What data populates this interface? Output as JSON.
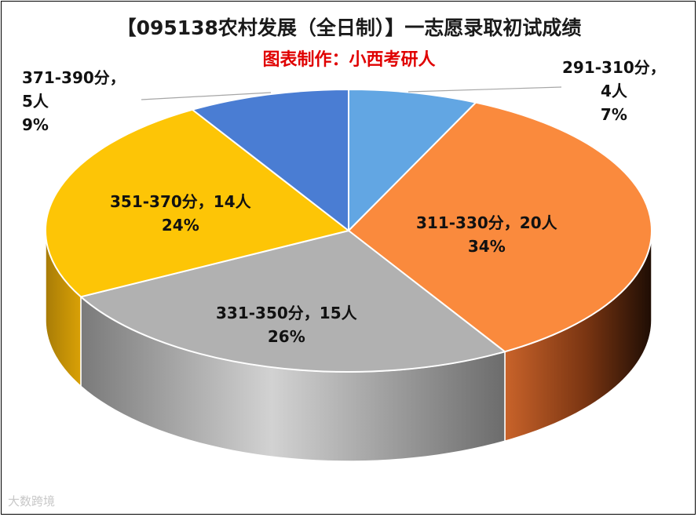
{
  "title": "【095138农村发展（全日制）】一志愿录取初试成绩",
  "subtitle": "图表制作：小西考研人",
  "subtitle_color": "#e00000",
  "watermark": "大数跨境",
  "chart_data": {
    "type": "pie",
    "style": "3d",
    "title": "【095138农村发展（全日制）】一志愿录取初试成绩",
    "subtitle": "图表制作：小西考研人",
    "slices": [
      {
        "category": "291-310分",
        "count": 4,
        "percent": 7,
        "label1": "291-310分，",
        "label2": "4人",
        "label3": "7%",
        "color": "#62a6e3"
      },
      {
        "category": "311-330分",
        "count": 20,
        "percent": 34,
        "label1": "311-330分，20人",
        "label2": "34%",
        "color": "#fa8a3d"
      },
      {
        "category": "331-350分",
        "count": 15,
        "percent": 26,
        "label1": "331-350分，15人",
        "label2": "26%",
        "color": "#b1b1b1"
      },
      {
        "category": "351-370分",
        "count": 14,
        "percent": 24,
        "label1": "351-370分，14人",
        "label2": "24%",
        "color": "#fdc506"
      },
      {
        "category": "371-390分",
        "count": 5,
        "percent": 9,
        "label1": "371-390分，",
        "label2": "5人",
        "label3": "9%",
        "color": "#4a7dd3"
      }
    ]
  }
}
